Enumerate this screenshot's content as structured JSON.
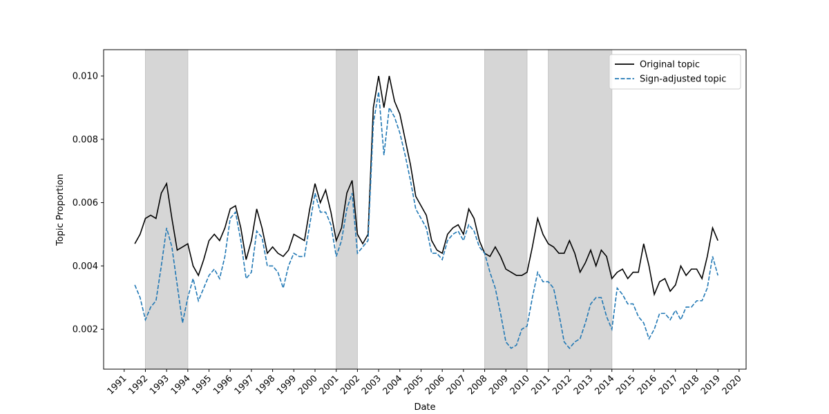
{
  "chart_data": {
    "type": "line",
    "xlabel": "Date",
    "ylabel": "Topic Proportion",
    "x": [
      1991.5,
      1991.75,
      1992,
      1992.25,
      1992.5,
      1992.75,
      1993,
      1993.25,
      1993.5,
      1993.75,
      1994,
      1994.25,
      1994.5,
      1994.75,
      1995,
      1995.25,
      1995.5,
      1995.75,
      1996,
      1996.25,
      1996.5,
      1996.75,
      1997,
      1997.25,
      1997.5,
      1997.75,
      1998,
      1998.25,
      1998.5,
      1998.75,
      1999,
      1999.25,
      1999.5,
      1999.75,
      2000,
      2000.25,
      2000.5,
      2000.75,
      2001,
      2001.25,
      2001.5,
      2001.75,
      2002,
      2002.25,
      2002.5,
      2002.75,
      2003,
      2003.25,
      2003.5,
      2003.75,
      2004,
      2004.25,
      2004.5,
      2004.75,
      2005,
      2005.25,
      2005.5,
      2005.75,
      2006,
      2006.25,
      2006.5,
      2006.75,
      2007,
      2007.25,
      2007.5,
      2007.75,
      2008,
      2008.25,
      2008.5,
      2008.75,
      2009,
      2009.25,
      2009.5,
      2009.75,
      2010,
      2010.25,
      2010.5,
      2010.75,
      2011,
      2011.25,
      2011.5,
      2011.75,
      2012,
      2012.25,
      2012.5,
      2012.75,
      2013,
      2013.25,
      2013.5,
      2013.75,
      2014,
      2014.25,
      2014.5,
      2014.75,
      2015,
      2015.25,
      2015.5,
      2015.75,
      2016,
      2016.25,
      2016.5,
      2016.75,
      2017,
      2017.25,
      2017.5,
      2017.75,
      2018,
      2018.25,
      2018.5,
      2018.75,
      2019
    ],
    "series": [
      {
        "name": "Original topic",
        "color": "#000000",
        "style": "solid",
        "values": [
          0.0047,
          0.005,
          0.0055,
          0.0056,
          0.0055,
          0.0063,
          0.0066,
          0.0055,
          0.0045,
          0.0046,
          0.0047,
          0.004,
          0.0037,
          0.0042,
          0.0048,
          0.005,
          0.0048,
          0.0052,
          0.0058,
          0.0059,
          0.0052,
          0.0042,
          0.0048,
          0.0058,
          0.0052,
          0.0044,
          0.0046,
          0.0044,
          0.0043,
          0.0045,
          0.005,
          0.0049,
          0.0048,
          0.0058,
          0.0066,
          0.006,
          0.0064,
          0.0057,
          0.0048,
          0.0052,
          0.0063,
          0.0067,
          0.005,
          0.0047,
          0.005,
          0.009,
          0.01,
          0.009,
          0.01,
          0.0092,
          0.0088,
          0.008,
          0.0072,
          0.0062,
          0.0059,
          0.0056,
          0.0048,
          0.0045,
          0.0044,
          0.005,
          0.0052,
          0.0053,
          0.005,
          0.0058,
          0.0055,
          0.0048,
          0.0044,
          0.0043,
          0.0046,
          0.0043,
          0.0039,
          0.0038,
          0.0037,
          0.0037,
          0.0038,
          0.0046,
          0.0055,
          0.005,
          0.0047,
          0.0046,
          0.0044,
          0.0044,
          0.0048,
          0.0044,
          0.0038,
          0.0041,
          0.0045,
          0.004,
          0.0045,
          0.0043,
          0.0036,
          0.0038,
          0.0039,
          0.0036,
          0.0038,
          0.0038,
          0.0047,
          0.004,
          0.0031,
          0.0035,
          0.0036,
          0.0032,
          0.0034,
          0.004,
          0.0037,
          0.0039,
          0.0039,
          0.0036,
          0.0043,
          0.0052,
          0.0048
        ]
      },
      {
        "name": "Sign-adjusted topic",
        "color": "#1f77b4",
        "style": "dashed",
        "values": [
          0.0034,
          0.003,
          0.0023,
          0.0027,
          0.0029,
          0.004,
          0.0052,
          0.0046,
          0.0034,
          0.0022,
          0.003,
          0.0036,
          0.0029,
          0.0033,
          0.0037,
          0.0039,
          0.0036,
          0.0043,
          0.0055,
          0.0057,
          0.0048,
          0.0036,
          0.0038,
          0.0051,
          0.0049,
          0.004,
          0.004,
          0.0038,
          0.0033,
          0.004,
          0.0044,
          0.0043,
          0.0043,
          0.0053,
          0.0063,
          0.0057,
          0.0057,
          0.0053,
          0.0043,
          0.0048,
          0.0058,
          0.0063,
          0.0044,
          0.0046,
          0.0048,
          0.0085,
          0.0095,
          0.0075,
          0.009,
          0.0087,
          0.0082,
          0.0075,
          0.0067,
          0.0058,
          0.0055,
          0.0052,
          0.0044,
          0.0044,
          0.0042,
          0.0048,
          0.005,
          0.0051,
          0.0048,
          0.0053,
          0.0051,
          0.0046,
          0.0044,
          0.0038,
          0.0033,
          0.0025,
          0.0016,
          0.0014,
          0.0015,
          0.002,
          0.0021,
          0.003,
          0.0038,
          0.0035,
          0.0035,
          0.0033,
          0.0025,
          0.0016,
          0.0014,
          0.0016,
          0.0017,
          0.0022,
          0.0028,
          0.003,
          0.003,
          0.0024,
          0.002,
          0.0033,
          0.0031,
          0.0028,
          0.0028,
          0.0024,
          0.0022,
          0.0017,
          0.002,
          0.0025,
          0.0025,
          0.0023,
          0.0026,
          0.0023,
          0.0027,
          0.0027,
          0.0029,
          0.0029,
          0.0033,
          0.0043,
          0.0037
        ]
      }
    ],
    "shaded_spans": [
      [
        1992,
        1994
      ],
      [
        2001,
        2002
      ],
      [
        2008,
        2010
      ],
      [
        2011,
        2014
      ]
    ],
    "shade_color": "#d6d6d6",
    "xlim": [
      1990.03,
      2020.33
    ],
    "xticks": [
      1991,
      1992,
      1993,
      1994,
      1995,
      1996,
      1997,
      1998,
      1999,
      2000,
      2001,
      2002,
      2003,
      2004,
      2005,
      2006,
      2007,
      2008,
      2009,
      2010,
      2011,
      2012,
      2013,
      2014,
      2015,
      2016,
      2017,
      2018,
      2019,
      2020
    ],
    "ylim": [
      0.00074,
      0.01083
    ],
    "yticks": [
      0.002,
      0.004,
      0.006,
      0.008,
      {
        "value": 0.01,
        "label": "0.010"
      }
    ],
    "legend": "upper right"
  }
}
